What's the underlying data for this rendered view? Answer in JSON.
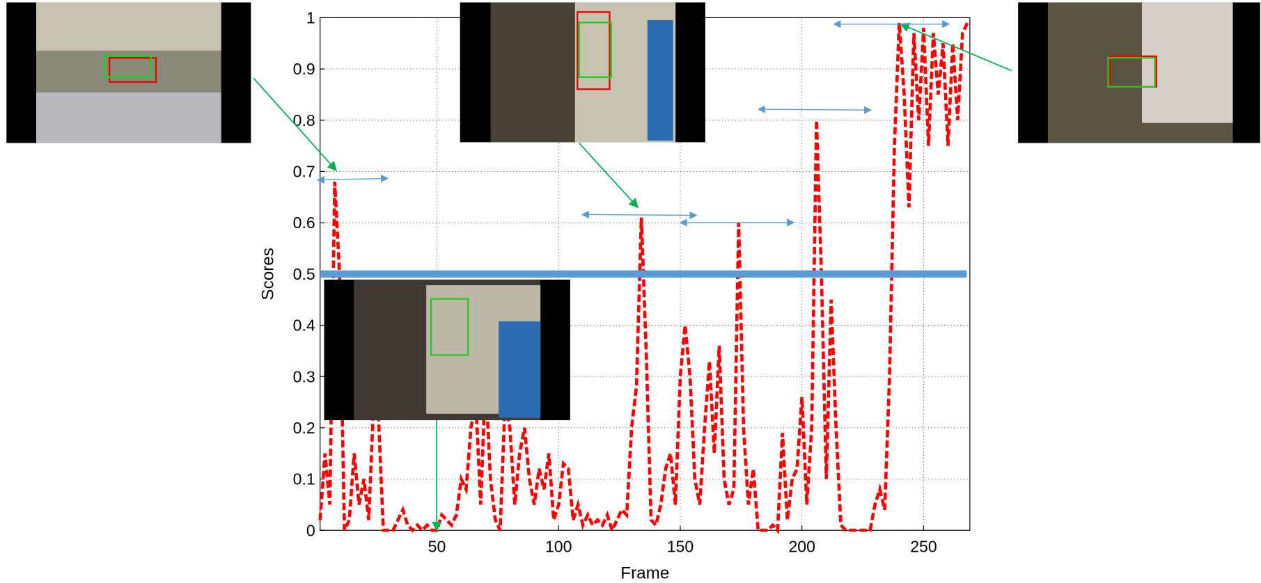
{
  "chart_data": {
    "type": "line",
    "xlabel": "Frame",
    "ylabel": "Scores",
    "xlim": [
      2,
      269
    ],
    "ylim": [
      0,
      1
    ],
    "xticks": [
      50,
      100,
      150,
      200,
      250
    ],
    "yticks": [
      0,
      0.1,
      0.2,
      0.3,
      0.4,
      0.5,
      0.6,
      0.7,
      0.8,
      0.9,
      1
    ],
    "grid": true,
    "color": "#ff0000",
    "threshold": 0.5,
    "threshold_color": "#5b9bd5",
    "x": [
      2,
      4,
      6,
      8,
      10,
      12,
      14,
      16,
      18,
      20,
      22,
      24,
      26,
      28,
      30,
      32,
      34,
      36,
      38,
      40,
      42,
      44,
      46,
      48,
      50,
      52,
      54,
      56,
      58,
      60,
      62,
      64,
      66,
      68,
      70,
      72,
      74,
      76,
      78,
      80,
      82,
      84,
      86,
      88,
      90,
      92,
      94,
      96,
      98,
      100,
      102,
      104,
      106,
      108,
      110,
      112,
      114,
      116,
      118,
      120,
      122,
      124,
      126,
      128,
      130,
      132,
      134,
      136,
      138,
      140,
      142,
      144,
      146,
      148,
      150,
      152,
      154,
      156,
      158,
      160,
      162,
      164,
      166,
      168,
      170,
      172,
      174,
      176,
      178,
      180,
      182,
      184,
      186,
      188,
      190,
      192,
      194,
      196,
      198,
      200,
      202,
      204,
      206,
      208,
      210,
      212,
      214,
      216,
      218,
      220,
      222,
      224,
      226,
      228,
      230,
      232,
      234,
      236,
      238,
      240,
      242,
      244,
      246,
      248,
      250,
      252,
      254,
      256,
      258,
      260,
      262,
      264,
      266,
      268
    ],
    "values": [
      0.02,
      0.15,
      0.05,
      0.68,
      0.5,
      0.0,
      0.02,
      0.15,
      0.05,
      0.1,
      0.02,
      0.25,
      0.22,
      0.0,
      0.0,
      0.0,
      0.02,
      0.04,
      0.01,
      0.0,
      0.01,
      0.0,
      0.01,
      0.0,
      0.0,
      0.03,
      0.02,
      0.01,
      0.03,
      0.1,
      0.08,
      0.2,
      0.25,
      0.05,
      0.3,
      0.1,
      0.02,
      0.0,
      0.25,
      0.2,
      0.05,
      0.15,
      0.2,
      0.1,
      0.05,
      0.12,
      0.08,
      0.15,
      0.02,
      0.05,
      0.13,
      0.12,
      0.02,
      0.05,
      0.01,
      0.03,
      0.01,
      0.02,
      0.01,
      0.03,
      0.0,
      0.02,
      0.04,
      0.03,
      0.2,
      0.28,
      0.61,
      0.35,
      0.02,
      0.01,
      0.05,
      0.12,
      0.15,
      0.05,
      0.3,
      0.4,
      0.3,
      0.1,
      0.05,
      0.2,
      0.33,
      0.15,
      0.36,
      0.1,
      0.05,
      0.08,
      0.6,
      0.2,
      0.05,
      0.12,
      0.0,
      0.0,
      0.0,
      0.01,
      0.0,
      0.19,
      0.02,
      0.1,
      0.12,
      0.26,
      0.05,
      0.2,
      0.8,
      0.5,
      0.1,
      0.45,
      0.2,
      0.01,
      0.0,
      0.0,
      0.0,
      0.0,
      0.0,
      0.0,
      0.05,
      0.08,
      0.04,
      0.3,
      0.75,
      0.99,
      0.85,
      0.63,
      0.97,
      0.8,
      0.98,
      0.75,
      0.97,
      0.85,
      0.95,
      0.75,
      0.95,
      0.8,
      0.97,
      0.99
    ]
  }
}
